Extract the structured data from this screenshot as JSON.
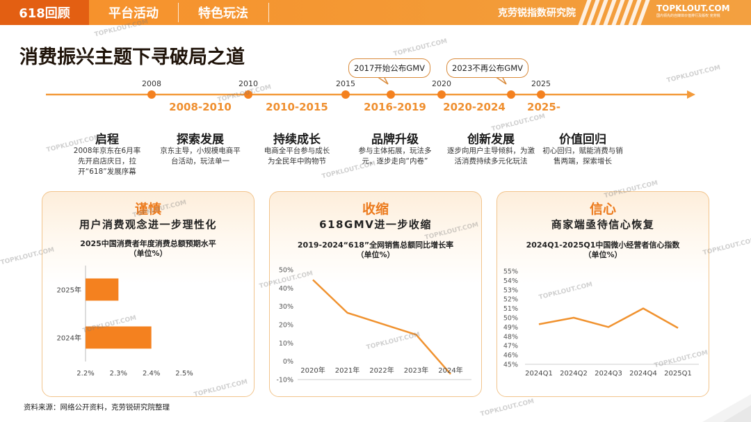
{
  "header": {
    "tabs": [
      {
        "label": "618回顾",
        "active": true
      },
      {
        "label": "平台活动",
        "active": false
      },
      {
        "label": "特色玩法",
        "active": false
      }
    ],
    "brand": "克劳锐指数研究院",
    "logo_main": "TOPKLOUT.COM",
    "logo_sub": "国内领先的自媒体价值排行及版权 克劳锐"
  },
  "title": "消费振兴主题下寻破局之道",
  "timeline": {
    "years": [
      "2008",
      "2010",
      "2015",
      "2020",
      "2025"
    ],
    "callouts": [
      "2017开始公布GMV",
      "2023不再公布GMV"
    ],
    "phases": [
      {
        "period": "",
        "name": "启程",
        "desc": "2008年京东在6月率先开启店庆日，拉开“618”发展序幕"
      },
      {
        "period": "2008-2010",
        "name": "探索发展",
        "desc": "京东主导，小规模电商平台活动，玩法单一"
      },
      {
        "period": "2010-2015",
        "name": "持续成长",
        "desc": "电商全平台参与成长为全民年中购物节"
      },
      {
        "period": "2016-2019",
        "name": "品牌升级",
        "desc": "参与主体拓展，玩法多元，逐步走向“内卷”"
      },
      {
        "period": "2020-2024",
        "name": "创新发展",
        "desc": "逐步向用户主导倾斜，为激活消费持续多元化玩法"
      },
      {
        "period": "2025-",
        "name": "价值回归",
        "desc": "初心回归，赋能消费与销售两端，探索增长"
      }
    ]
  },
  "cards": [
    {
      "heading": "谨慎",
      "subheading": "用户消费观念进一步理性化"
    },
    {
      "heading": "收缩",
      "subheading": "618GMV进一步收缩"
    },
    {
      "heading": "信心",
      "subheading": "商家端亟待信心恢复"
    }
  ],
  "chart_data": [
    {
      "type": "bar",
      "orientation": "horizontal",
      "title": "2025中国消费者年度消费总额预期水平",
      "unit": "（单位%）",
      "categories": [
        "2025年",
        "2024年"
      ],
      "values": [
        2.3,
        2.4
      ],
      "xlim": [
        2.2,
        2.5
      ],
      "xticks": [
        "2.2%",
        "2.3%",
        "2.4%",
        "2.5%"
      ],
      "color": "#f4811f",
      "grid": false
    },
    {
      "type": "line",
      "title": "2019-2024“618”全网销售总额同比增长率",
      "unit": "（单位%）",
      "x": [
        "2020年",
        "2021年",
        "2022年",
        "2023年",
        "2024年"
      ],
      "values": [
        44.5,
        26.5,
        20.5,
        14.5,
        -7
      ],
      "ylim": [
        -10,
        50
      ],
      "yticks": [
        "50%",
        "40%",
        "30%",
        "20%",
        "10%",
        "0%",
        "-10%"
      ],
      "color": "#f0922f",
      "grid": false
    },
    {
      "type": "line",
      "title": "2024Q1-2025Q1中国微小经营者信心指数",
      "unit": "（单位%）",
      "x": [
        "2024Q1",
        "2024Q2",
        "2024Q3",
        "2024Q4",
        "2025Q1"
      ],
      "values": [
        49.3,
        50.0,
        49.0,
        51.0,
        48.9
      ],
      "ylim": [
        45,
        55
      ],
      "yticks": [
        "55%",
        "54%",
        "53%",
        "52%",
        "51%",
        "50%",
        "49%",
        "48%",
        "47%",
        "46%",
        "45%"
      ],
      "color": "#f0922f",
      "grid": false
    }
  ],
  "source": "资料来源：网络公开资料，克劳锐研究院整理",
  "watermark": "TOPKLOUT.COM",
  "colors": {
    "accent": "#f4811f",
    "tab_active": "#e35f12",
    "period": "#ef8f2f"
  }
}
